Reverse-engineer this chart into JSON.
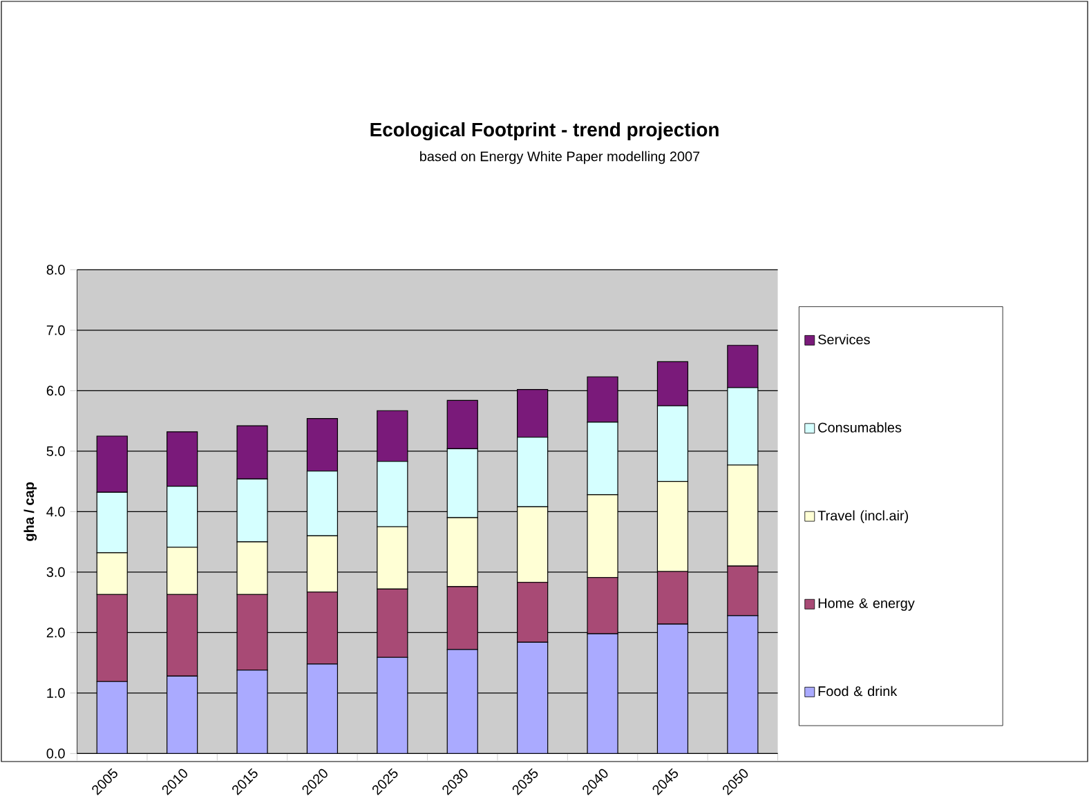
{
  "chart_data": {
    "type": "bar",
    "stacked": true,
    "title": "Ecological Footprint - trend projection",
    "subtitle": "based on Energy White Paper modelling 2007",
    "ylabel": "gha / cap",
    "categories": [
      "2005",
      "2010",
      "2015",
      "2020",
      "2025",
      "2030",
      "2035",
      "2040",
      "2045",
      "2050"
    ],
    "series": [
      {
        "name": "Food & drink",
        "color": "#aaaaff",
        "values": [
          1.19,
          1.28,
          1.38,
          1.48,
          1.59,
          1.72,
          1.84,
          1.98,
          2.14,
          2.28
        ]
      },
      {
        "name": "Home & energy",
        "color": "#a84a75",
        "values": [
          1.44,
          1.35,
          1.25,
          1.19,
          1.13,
          1.04,
          0.99,
          0.93,
          0.87,
          0.82
        ]
      },
      {
        "name": "Travel (incl.air)",
        "color": "#ffffd5",
        "values": [
          0.69,
          0.78,
          0.87,
          0.93,
          1.03,
          1.14,
          1.25,
          1.37,
          1.49,
          1.67
        ]
      },
      {
        "name": "Consumables",
        "color": "#d5ffff",
        "values": [
          1.0,
          1.01,
          1.04,
          1.07,
          1.08,
          1.14,
          1.15,
          1.2,
          1.25,
          1.28
        ]
      },
      {
        "name": "Services",
        "color": "#7a1a7a",
        "values": [
          0.93,
          0.9,
          0.88,
          0.87,
          0.84,
          0.8,
          0.79,
          0.75,
          0.73,
          0.7
        ]
      }
    ],
    "ylim": [
      0,
      8
    ],
    "yticks": [
      {
        "value": 0,
        "label": "0.0"
      },
      {
        "value": 1,
        "label": "1.0"
      },
      {
        "value": 2,
        "label": "2.0"
      },
      {
        "value": 3,
        "label": "3.0"
      },
      {
        "value": 4,
        "label": "4.0"
      },
      {
        "value": 5,
        "label": "5.0"
      },
      {
        "value": 6,
        "label": "6.0"
      },
      {
        "value": 7,
        "label": "7.0"
      },
      {
        "value": 8,
        "label": "8.0"
      }
    ],
    "grid": "y",
    "legend": "right"
  }
}
